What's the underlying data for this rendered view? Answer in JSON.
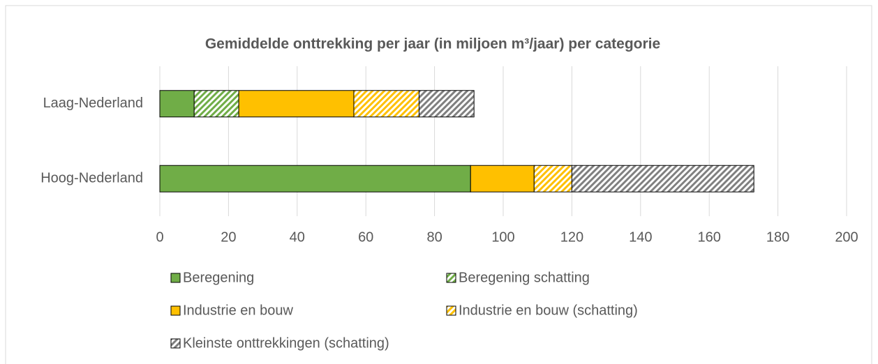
{
  "chart_data": {
    "type": "stacked_barh",
    "title": "Gemiddelde onttrekking per jaar (in miljoen m³/jaar) per categorie",
    "categories": [
      "Laag-Nederland",
      "Hoog-Nederland"
    ],
    "series": [
      {
        "name": "Beregening",
        "color": "#70ad47",
        "hatch": false,
        "values": [
          10,
          90.5
        ]
      },
      {
        "name": "Beregening schatting",
        "color": "#70ad47",
        "hatch": true,
        "values": [
          13,
          0
        ]
      },
      {
        "name": "Industrie en bouw",
        "color": "#ffc000",
        "hatch": false,
        "values": [
          33.5,
          18.5
        ]
      },
      {
        "name": "Industrie en bouw (schatting)",
        "color": "#ffc000",
        "hatch": true,
        "values": [
          19,
          11
        ]
      },
      {
        "name": "Kleinste onttrekkingen (schatting)",
        "color": "#808080",
        "hatch": true,
        "values": [
          16,
          53
        ]
      }
    ],
    "xlim": [
      0,
      200
    ],
    "xticks": [
      0,
      20,
      40,
      60,
      80,
      100,
      120,
      140,
      160,
      180,
      200
    ],
    "grid": true
  }
}
